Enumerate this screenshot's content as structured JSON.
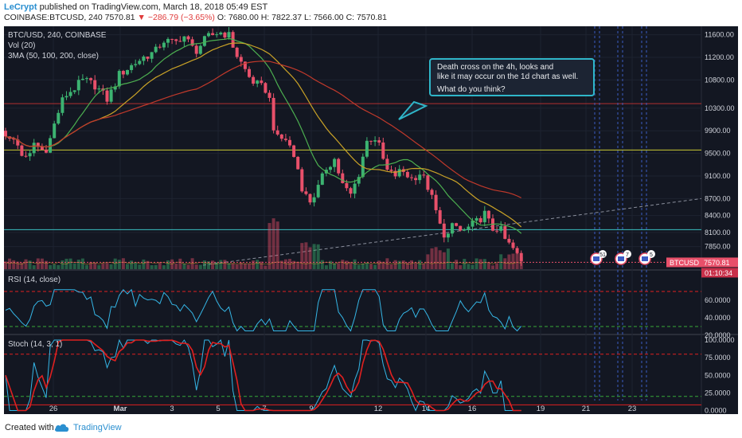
{
  "header": {
    "author": "LeCrypt",
    "published_text": "published on TradingView.com, March 18, 2018 05:49 EST",
    "symbol_line": "COINBASE:BTCUSD, 240",
    "last": "7570.81",
    "change": "−286.79 (−3.65%)",
    "o": "O: 7680.00",
    "h": "H: 7822.37",
    "l": "L: 7566.00",
    "c": "C: 7570.81"
  },
  "legend": {
    "symbol": "BTC/USD, 240, COINBASE",
    "vol": "Vol (20)",
    "ma": "3MA (50, 100, 200, close)",
    "rsi": "RSI (14, close)",
    "stoch": "Stoch (14, 3, 1)"
  },
  "callout": {
    "line1": "Death cross on the 4h, looks and",
    "line2": "like it may occur on the 1d chart as well.",
    "line3": "What do you think?"
  },
  "price_tag": "BTCUSD",
  "price_value": "7570.81",
  "countdown": "01:10:34",
  "footer": {
    "created_with": "Created with",
    "brand": "TradingView"
  },
  "colors": {
    "background": "#131722",
    "up": "#3cb371",
    "down": "#e8506a",
    "ma50": "#4caf50",
    "ma100": "#c9a227",
    "ma200": "#c0392b",
    "rsi": "#35b6e6",
    "stoch_k": "#35b6e6",
    "stoch_d": "#e02020",
    "hline_red": "#b33030",
    "hline_yellow": "#c8c832",
    "hline_teal": "#39c0c0"
  },
  "chart_data": {
    "type": "candlestick",
    "x_tick_labels": [
      "26",
      "Mar",
      "3",
      "5",
      "7",
      "9",
      "12",
      "14",
      "16",
      "19",
      "21",
      "23"
    ],
    "price_axis": [
      "11600.00",
      "11200.00",
      "10800.00",
      "10300.00",
      "9900.00",
      "9500.00",
      "9100.00",
      "8700.00",
      "8400.00",
      "8100.00",
      "7850.00"
    ],
    "rsi_axis": [
      "60.0000",
      "40.0000",
      "20.0000"
    ],
    "stoch_axis": [
      "100.0000",
      "75.0000",
      "50.0000",
      "25.0000",
      "0.0000"
    ],
    "horizontal_levels": [
      {
        "price": 10380,
        "color": "red"
      },
      {
        "price": 9560,
        "color": "yellow"
      },
      {
        "price": 8150,
        "color": "teal"
      }
    ],
    "key_prices": [
      {
        "date": "Feb 26",
        "approx_close": 9600
      },
      {
        "date": "Mar 5",
        "approx_high": 11700
      },
      {
        "date": "Mar 9",
        "approx_low": 8400
      },
      {
        "date": "Mar 12",
        "approx_high": 9900
      },
      {
        "date": "Mar 15",
        "approx_low": 7900
      },
      {
        "date": "Mar 16",
        "approx_high": 8600
      },
      {
        "date": "Mar 18",
        "close": 7570.81
      }
    ],
    "rsi_levels": [
      70,
      30
    ],
    "stoch_levels": [
      80,
      20
    ]
  }
}
